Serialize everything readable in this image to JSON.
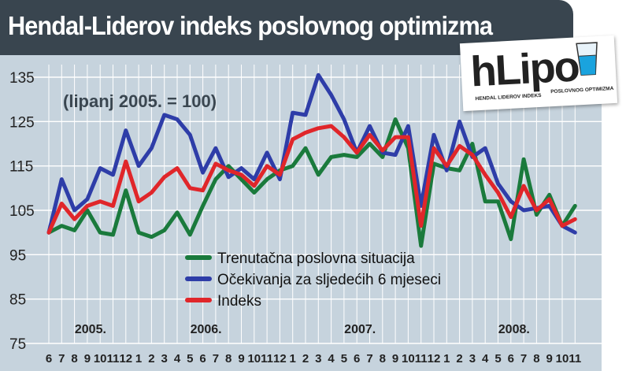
{
  "header": {
    "title": "Hendal-Liderov indeks poslovnog optimizma"
  },
  "logo": {
    "name": "hLipo",
    "sub_left": "HENDAL LIDEROV INDEKS",
    "sub_right": "POSLOVNOG OPTIMIZMA"
  },
  "colors": {
    "header_bg": "#39454f",
    "plot_bg": "#c6d3dd",
    "green": "#1a7a3c",
    "blue": "#2e3da8",
    "red": "#e0262a"
  },
  "chart_data": {
    "type": "line",
    "title": "Hendal-Liderov indeks poslovnog optimizma",
    "subtitle": "(lipanj 2005. = 100)",
    "xlabel": "",
    "ylabel": "",
    "ylim": [
      75,
      135
    ],
    "yticks": [
      135,
      125,
      115,
      105,
      95,
      85,
      75
    ],
    "grid": true,
    "legend_position": "bottom-center",
    "years": [
      {
        "label": "2005.",
        "index": 3
      },
      {
        "label": "2006.",
        "index": 12
      },
      {
        "label": "2007.",
        "index": 24
      },
      {
        "label": "2008.",
        "index": 36
      }
    ],
    "categories": [
      "6",
      "7",
      "8",
      "9",
      "10",
      "11",
      "12",
      "1",
      "2",
      "3",
      "4",
      "5",
      "6",
      "7",
      "8",
      "9",
      "10",
      "11",
      "12",
      "1",
      "2",
      "3",
      "4",
      "5",
      "6",
      "7",
      "8",
      "9",
      "10",
      "11",
      "12",
      "1",
      "2",
      "3",
      "4",
      "5",
      "6",
      "7",
      "8",
      "9",
      "10",
      "11"
    ],
    "series": [
      {
        "name": "Trenutačna poslovna situacija",
        "color": "#1a7a3c",
        "values": [
          100,
          101.5,
          100.5,
          105,
          100,
          99.5,
          109.5,
          100,
          99,
          100.5,
          104.5,
          99.5,
          106,
          112,
          115,
          112,
          109,
          112,
          114,
          115,
          119,
          113,
          117,
          117.5,
          117,
          120,
          117,
          125.5,
          119,
          97,
          115.5,
          114.5,
          114,
          120,
          107,
          107,
          98.5,
          116.5,
          104,
          108.5,
          101.5,
          106
        ]
      },
      {
        "name": "Očekivanja za sljedećih 6 mjeseci",
        "color": "#2e3da8",
        "values": [
          100,
          112,
          105,
          107.5,
          114.5,
          113,
          123,
          115,
          119,
          126.5,
          125.5,
          122,
          113.5,
          119,
          112.5,
          114.5,
          112,
          118,
          112,
          127,
          126.5,
          135.5,
          131,
          125.5,
          118,
          124,
          118,
          117.5,
          124,
          106,
          122,
          114,
          125,
          117,
          119,
          111,
          107,
          105,
          105.5,
          106,
          101.5,
          100
        ]
      },
      {
        "name": "Indeks",
        "color": "#e0262a",
        "values": [
          100,
          106.5,
          103,
          106,
          107,
          106,
          116,
          107,
          109,
          112.5,
          114.5,
          110,
          109.5,
          115.5,
          114,
          113,
          110.5,
          115,
          113,
          121,
          122.5,
          123.5,
          124,
          121.5,
          118,
          122,
          118.5,
          121.5,
          121.5,
          101.5,
          119,
          115,
          119.5,
          117.5,
          113,
          109,
          103.5,
          110.5,
          105,
          107.5,
          101.5,
          103
        ]
      }
    ]
  }
}
